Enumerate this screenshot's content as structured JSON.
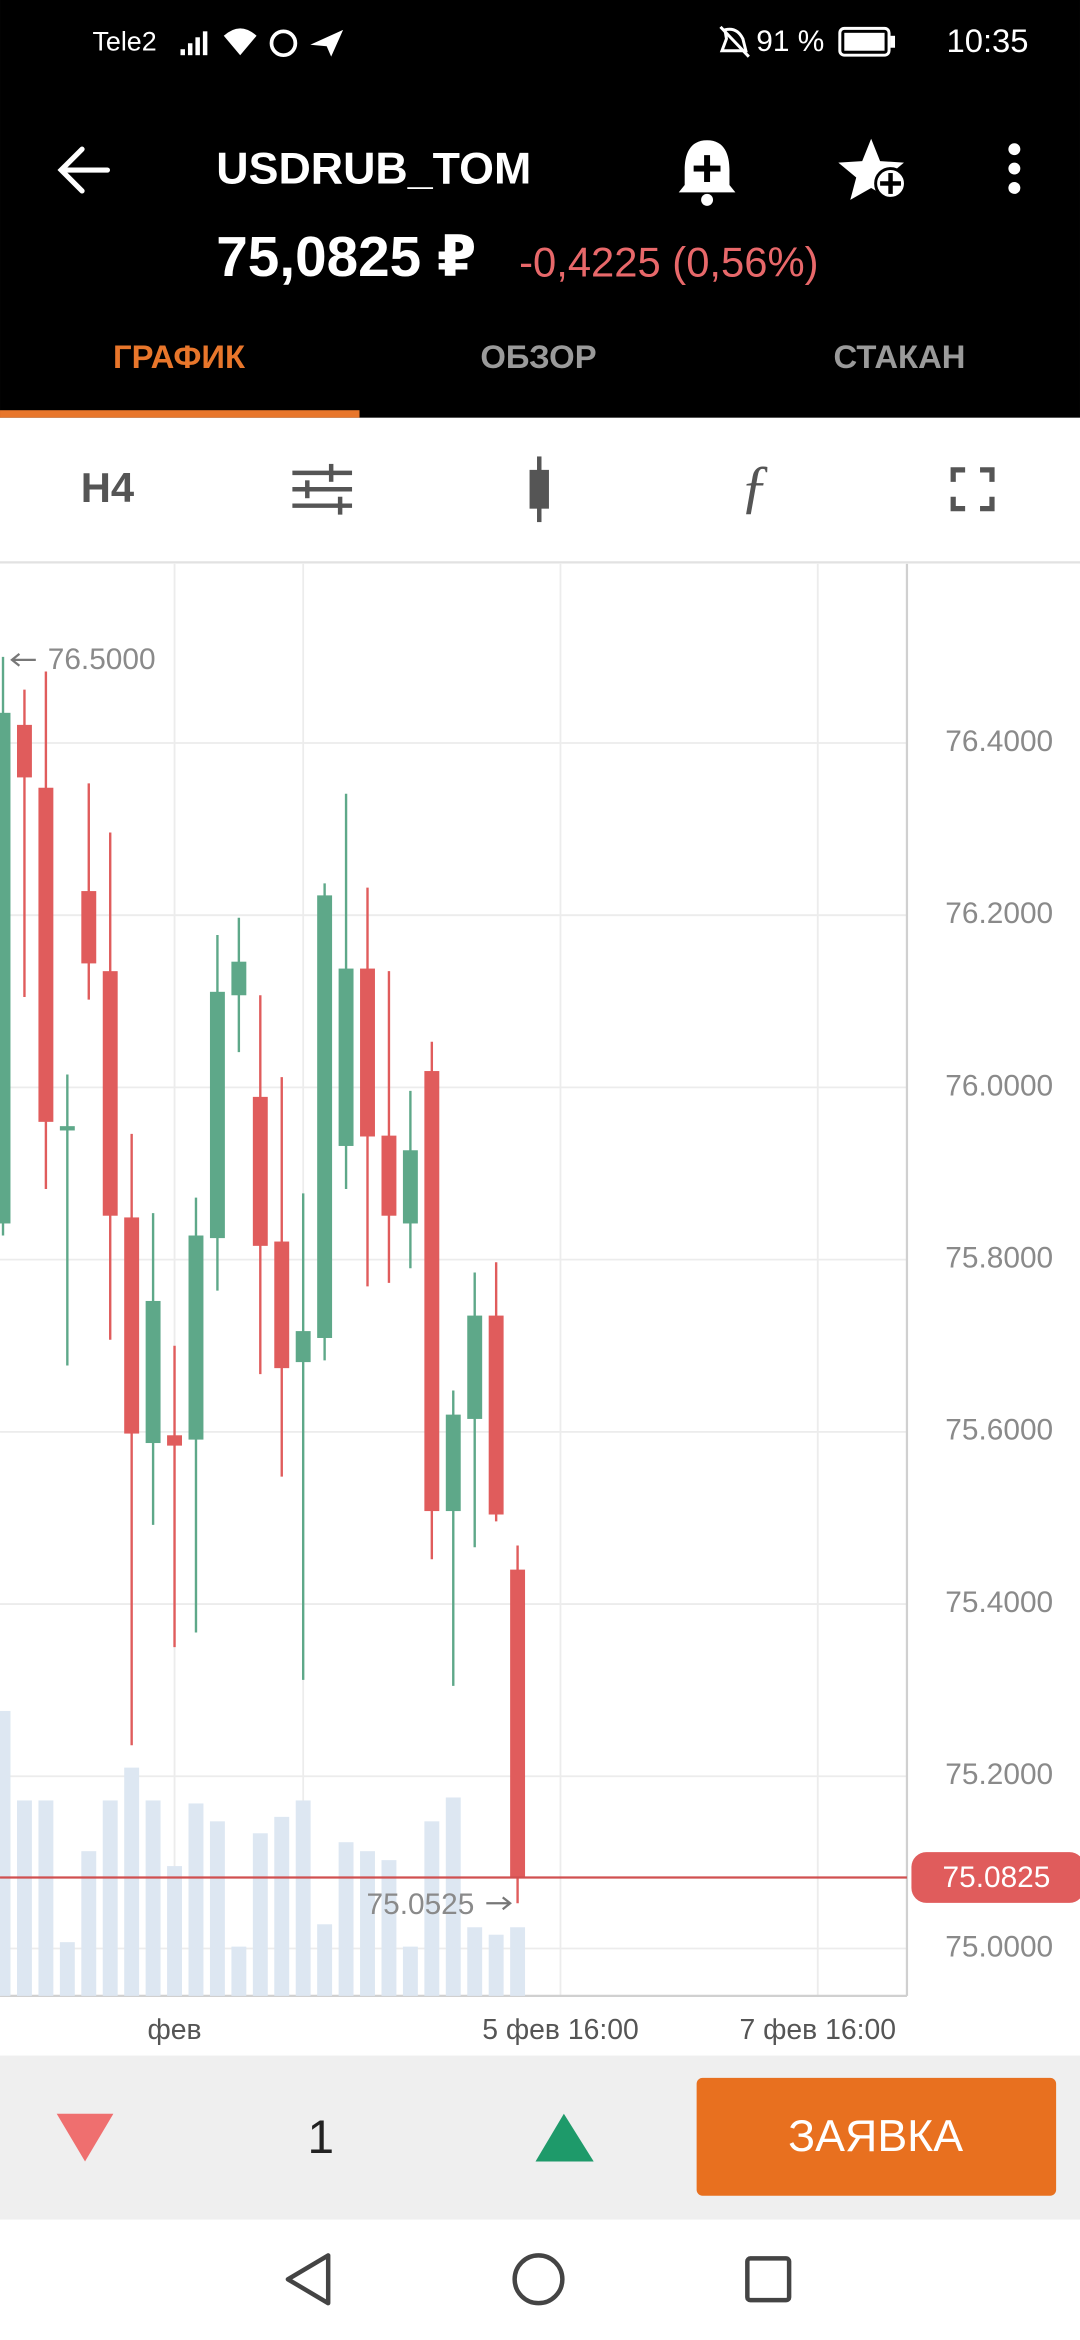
{
  "status_bar": {
    "carrier": "Tele2",
    "battery": "91 %",
    "time": "10:35"
  },
  "header": {
    "title": "USDRUB_TOM",
    "price": "75,0825 ₽",
    "change": "-0,4225 (0,56%)"
  },
  "tabs": [
    "ГРАФИК",
    "ОБЗОР",
    "СТАКАН"
  ],
  "toolbar": {
    "timeframe": "H4"
  },
  "chart_data": {
    "type": "candlestick",
    "x": [
      0,
      1,
      2,
      3,
      4,
      5,
      6,
      7,
      8,
      9,
      10,
      11,
      12,
      13,
      14,
      15,
      16,
      17,
      18,
      19,
      20,
      21,
      22,
      23,
      24
    ],
    "open": [
      75.842,
      76.421,
      76.348,
      75.95,
      76.228,
      76.135,
      75.849,
      75.587,
      75.596,
      75.591,
      75.825,
      76.107,
      75.989,
      75.821,
      75.681,
      75.709,
      75.932,
      76.138,
      75.944,
      75.842,
      76.019,
      75.508,
      75.615,
      75.735,
      75.44
    ],
    "high": [
      76.5,
      76.462,
      76.483,
      76.015,
      76.353,
      76.296,
      75.946,
      75.854,
      75.7,
      75.872,
      76.177,
      76.197,
      76.107,
      76.012,
      75.877,
      76.237,
      76.341,
      76.232,
      76.135,
      75.996,
      76.053,
      75.648,
      75.785,
      75.797,
      75.468
    ],
    "low": [
      75.828,
      76.105,
      75.882,
      75.677,
      76.102,
      75.707,
      75.236,
      75.492,
      75.35,
      75.367,
      75.764,
      76.041,
      75.667,
      75.548,
      75.312,
      75.683,
      75.882,
      75.769,
      75.773,
      75.79,
      75.452,
      75.305,
      75.466,
      75.496,
      75.0525
    ],
    "close": [
      76.435,
      76.36,
      75.96,
      75.955,
      76.144,
      75.851,
      75.598,
      75.752,
      75.584,
      75.828,
      76.111,
      76.146,
      75.816,
      75.674,
      75.717,
      76.223,
      76.138,
      75.943,
      75.851,
      75.927,
      75.508,
      75.62,
      75.735,
      75.504,
      75.0825
    ],
    "volume": [
      191,
      131,
      131,
      36,
      97,
      131,
      153,
      131,
      87,
      129,
      117,
      33,
      109,
      120,
      131,
      48,
      103,
      97,
      91,
      33,
      117,
      133,
      46,
      41,
      46
    ],
    "up_color": "#5ea889",
    "down_color": "#e05c5c",
    "volume_color": "#dde7f2",
    "xlim": [
      -0.14,
      42.16
    ],
    "xticks": [
      {
        "value": 8,
        "label": "фев"
      },
      {
        "value": 14,
        "label": null
      },
      {
        "value": 26,
        "label": "5 фев 16:00"
      },
      {
        "value": 38,
        "label": "7 фев 16:00"
      }
    ],
    "ylim": [
      74.945,
      76.608
    ],
    "yticks": [
      {
        "value": 75.0,
        "label": "75.0000"
      },
      {
        "value": 75.2,
        "label": "75.2000"
      },
      {
        "value": 75.4,
        "label": "75.4000"
      },
      {
        "value": 75.6,
        "label": "75.6000"
      },
      {
        "value": 75.8,
        "label": "75.8000"
      },
      {
        "value": 76.0,
        "label": "76.0000"
      },
      {
        "value": 76.2,
        "label": "76.2000"
      },
      {
        "value": 76.4,
        "label": "76.4000"
      }
    ],
    "grid": true,
    "annotations": [
      {
        "value": 76.5,
        "label": "76.5000"
      },
      {
        "value": 75.0525,
        "label": "75.0525"
      }
    ],
    "last_price": {
      "value": 75.0825,
      "label": "75.0825"
    }
  },
  "order_bar": {
    "quantity": "1",
    "button": "ЗАЯВКА"
  }
}
